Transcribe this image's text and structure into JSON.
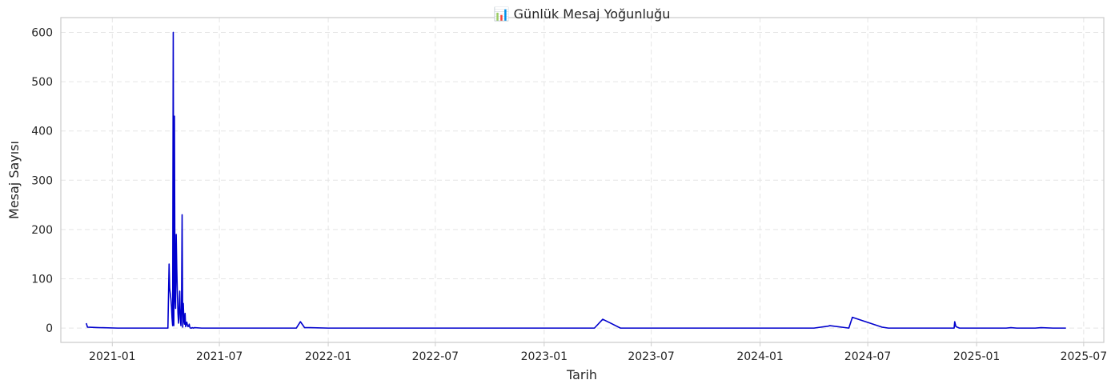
{
  "chart_data": {
    "type": "line",
    "title": "📊 Günlük Mesaj Yoğunluğu",
    "xlabel": "Tarih",
    "ylabel": "Mesaj Sayısı",
    "x_is_date": true,
    "xlim": [
      "2020-10-06",
      "2025-08-04"
    ],
    "ylim": [
      -29,
      630
    ],
    "grid": true,
    "line_color": "#0000cd",
    "yticks": [
      0,
      100,
      200,
      300,
      400,
      500,
      600
    ],
    "xticks": [
      "2021-01",
      "2021-07",
      "2022-01",
      "2022-07",
      "2023-01",
      "2023-07",
      "2024-01",
      "2024-07",
      "2025-01",
      "2025-07"
    ],
    "series": [
      {
        "x": [
          "2020-11-18",
          "2020-11-20",
          "2020-12-10",
          "2021-01-10",
          "2021-03-20",
          "2021-04-05",
          "2021-04-07",
          "2021-04-08",
          "2021-04-10",
          "2021-04-11",
          "2021-04-12",
          "2021-04-13",
          "2021-04-14",
          "2021-04-15",
          "2021-04-16",
          "2021-04-17",
          "2021-04-18",
          "2021-04-19",
          "2021-04-20",
          "2021-04-21",
          "2021-04-22",
          "2021-04-23",
          "2021-04-25",
          "2021-04-26",
          "2021-04-27",
          "2021-04-28",
          "2021-04-29",
          "2021-04-30",
          "2021-05-01",
          "2021-05-02",
          "2021-05-03",
          "2021-05-04",
          "2021-05-05",
          "2021-05-06",
          "2021-05-07",
          "2021-05-08",
          "2021-05-09",
          "2021-05-10",
          "2021-05-11",
          "2021-05-12",
          "2021-05-13",
          "2021-05-15",
          "2021-05-16",
          "2021-05-18",
          "2021-05-20",
          "2021-06-01",
          "2021-10-28",
          "2021-11-08",
          "2021-11-15",
          "2021-11-22",
          "2021-12-01",
          "2022-01-01",
          "2023-03-27",
          "2023-04-10",
          "2023-05-10",
          "2024-04-01",
          "2024-04-25",
          "2024-04-28",
          "2024-05-30",
          "2024-06-05",
          "2024-07-25",
          "2024-08-05",
          "2024-11-24",
          "2024-11-25",
          "2024-11-27",
          "2024-12-03",
          "2025-02-20",
          "2025-02-28",
          "2025-03-10",
          "2025-04-10",
          "2025-04-20",
          "2025-05-10",
          "2025-06-01"
        ],
        "y": [
          10,
          2,
          1,
          0,
          0,
          0,
          130,
          80,
          60,
          45,
          20,
          5,
          600,
          5,
          430,
          60,
          40,
          190,
          120,
          70,
          30,
          10,
          75,
          20,
          5,
          40,
          230,
          2,
          50,
          15,
          8,
          30,
          3,
          10,
          12,
          6,
          3,
          4,
          8,
          2,
          0,
          0,
          1,
          0,
          1,
          0,
          0,
          0,
          13,
          1,
          1,
          0,
          0,
          18,
          0,
          0,
          4,
          5,
          0,
          22,
          2,
          0,
          0,
          13,
          3,
          0,
          0,
          1,
          0,
          0,
          1,
          0,
          0
        ]
      }
    ]
  }
}
